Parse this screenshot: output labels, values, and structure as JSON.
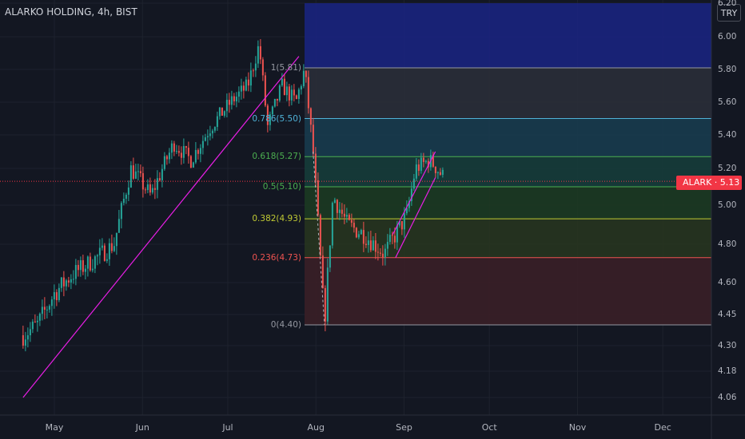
{
  "header": {
    "symbol_name": "ALARKO HOLDING",
    "separator1": ", ",
    "interval": "4h",
    "separator2": ", ",
    "exchange": "BIST"
  },
  "currency": "TRY",
  "price_tag": {
    "symbol": "ALARK",
    "price": "5.13",
    "color": "#f23645"
  },
  "chart_data": {
    "type": "candlestick",
    "title": "ALARKO HOLDING, 4h, BIST",
    "xlabel": "",
    "ylabel": "",
    "x_ticks": [
      "May",
      "Jun",
      "Jul",
      "Aug",
      "Sep",
      "Oct",
      "Nov",
      "Dec"
    ],
    "y_ticks": [
      "6.20",
      "6.00",
      "5.80",
      "5.60",
      "5.40",
      "5.20",
      "5.00",
      "4.80",
      "4.60",
      "4.45",
      "4.30",
      "4.18",
      "4.06"
    ],
    "ylim": [
      4.0,
      6.2
    ],
    "last_price": 5.13,
    "price_path": [
      [
        "2020-04-20",
        4.35
      ],
      [
        "2020-04-25",
        4.4
      ],
      [
        "2020-05-01",
        4.55
      ],
      [
        "2020-05-08",
        4.65
      ],
      [
        "2020-05-15",
        4.72
      ],
      [
        "2020-05-22",
        4.8
      ],
      [
        "2020-05-28",
        5.2
      ],
      [
        "2020-06-04",
        5.05
      ],
      [
        "2020-06-12",
        5.35
      ],
      [
        "2020-06-18",
        5.25
      ],
      [
        "2020-06-25",
        5.45
      ],
      [
        "2020-07-02",
        5.6
      ],
      [
        "2020-07-08",
        5.7
      ],
      [
        "2020-07-12",
        5.95
      ],
      [
        "2020-07-15",
        5.45
      ],
      [
        "2020-07-20",
        5.7
      ],
      [
        "2020-07-25",
        5.6
      ],
      [
        "2020-07-28",
        5.8
      ],
      [
        "2020-07-31",
        5.3
      ],
      [
        "2020-08-04",
        4.4
      ],
      [
        "2020-08-07",
        5.05
      ],
      [
        "2020-08-12",
        4.9
      ],
      [
        "2020-08-18",
        4.85
      ],
      [
        "2020-08-25",
        4.75
      ],
      [
        "2020-09-02",
        4.95
      ],
      [
        "2020-09-05",
        5.2
      ],
      [
        "2020-09-10",
        5.25
      ],
      [
        "2020-09-15",
        5.15
      ]
    ],
    "fibonacci": {
      "levels": [
        {
          "label": "1(5.81)",
          "value": 5.81,
          "color": "#9598a1"
        },
        {
          "label": "0.786(5.50)",
          "value": 5.5,
          "color": "#4fb3d9"
        },
        {
          "label": "0.618(5.27)",
          "value": 5.27,
          "color": "#4caf50"
        },
        {
          "label": "0.5(5.10)",
          "value": 5.1,
          "color": "#4caf50"
        },
        {
          "label": "0.382(4.93)",
          "value": 4.93,
          "color": "#c0ca33"
        },
        {
          "label": "0.236(4.73)",
          "value": 4.73,
          "color": "#ef5350"
        },
        {
          "label": "0(4.40)",
          "value": 4.4,
          "color": "#9598a1"
        }
      ],
      "zones": [
        {
          "from": 5.81,
          "to": 6.2,
          "color": "#1a237e"
        },
        {
          "from": 5.5,
          "to": 5.81,
          "color": "#2a2e39"
        },
        {
          "from": 5.27,
          "to": 5.5,
          "color": "#183b4e"
        },
        {
          "from": 5.1,
          "to": 5.27,
          "color": "#163c3a"
        },
        {
          "from": 4.93,
          "to": 5.1,
          "color": "#1c3a22"
        },
        {
          "from": 4.73,
          "to": 4.93,
          "color": "#27341f"
        },
        {
          "from": 4.4,
          "to": 4.73,
          "color": "#3a1f27"
        }
      ]
    },
    "trendlines": [
      {
        "from": [
          "2020-04-20",
          4.06
        ],
        "to": [
          "2020-07-26",
          5.88
        ],
        "color": "#e91ee6"
      },
      {
        "from": [
          "2020-08-29",
          4.73
        ],
        "to": [
          "2020-09-12",
          5.15
        ],
        "color": "#e91ee6"
      },
      {
        "from": [
          "2020-08-28",
          4.85
        ],
        "to": [
          "2020-09-12",
          5.3
        ],
        "color": "#e91ee6"
      }
    ]
  }
}
